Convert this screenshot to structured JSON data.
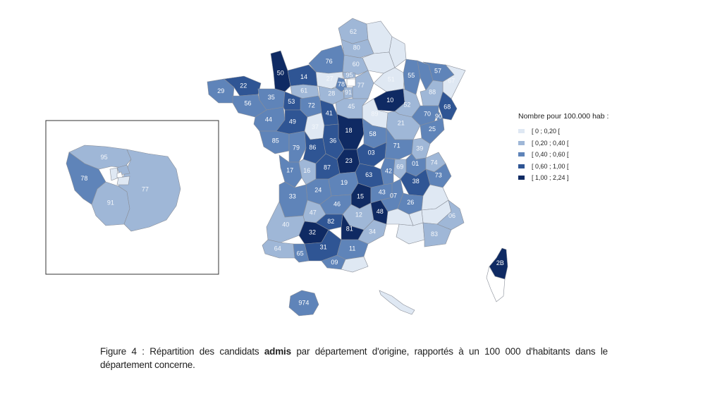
{
  "legend": {
    "title": "Nombre pour 100.000 hab :",
    "classes": [
      {
        "label": "[ 0 ; 0,20 [",
        "color": "#dfe8f3"
      },
      {
        "label": "[ 0,20 ; 0,40 [",
        "color": "#9fb7d7"
      },
      {
        "label": "[ 0,40 ; 0,60 [",
        "color": "#5f84b9"
      },
      {
        "label": "[ 0,60 ; 1,00 [",
        "color": "#2f5594"
      },
      {
        "label": "[ 1,00 ; 2,24 ]",
        "color": "#0f2a63"
      }
    ]
  },
  "caption": {
    "prefix": "Figure 4 : Répartition des candidats ",
    "emphasis": "admis",
    "suffix": " par département d'origine, rapportés à un 100 000 d'habitants dans le département concerne."
  },
  "departments": [
    {
      "code": "62",
      "class": 1
    },
    {
      "code": "80",
      "class": 1
    },
    {
      "code": "60",
      "class": 1
    },
    {
      "code": "76",
      "class": 2
    },
    {
      "code": "27",
      "class": 0
    },
    {
      "code": "50",
      "class": 4
    },
    {
      "code": "14",
      "class": 3
    },
    {
      "code": "61",
      "class": 1
    },
    {
      "code": "28",
      "class": 1
    },
    {
      "code": "95",
      "class": 1
    },
    {
      "code": "78",
      "class": 2
    },
    {
      "code": "91",
      "class": 1
    },
    {
      "code": "77",
      "class": 1
    },
    {
      "code": "51",
      "class": 0
    },
    {
      "code": "55",
      "class": 2
    },
    {
      "code": "57",
      "class": 2
    },
    {
      "code": "67",
      "class": 0
    },
    {
      "code": "10",
      "class": 4
    },
    {
      "code": "52",
      "class": 1
    },
    {
      "code": "88",
      "class": 1
    },
    {
      "code": "68",
      "class": 3
    },
    {
      "code": "90",
      "class": 2
    },
    {
      "code": "70",
      "class": 2
    },
    {
      "code": "25",
      "class": 2
    },
    {
      "code": "21",
      "class": 1
    },
    {
      "code": "89",
      "class": 0
    },
    {
      "code": "45",
      "class": 1
    },
    {
      "code": "41",
      "class": 3
    },
    {
      "code": "29",
      "class": 2
    },
    {
      "code": "22",
      "class": 3
    },
    {
      "code": "35",
      "class": 2
    },
    {
      "code": "56",
      "class": 2
    },
    {
      "code": "53",
      "class": 3
    },
    {
      "code": "72",
      "class": 2
    },
    {
      "code": "44",
      "class": 2
    },
    {
      "code": "49",
      "class": 3
    },
    {
      "code": "37",
      "class": 0
    },
    {
      "code": "18",
      "class": 4
    },
    {
      "code": "58",
      "class": 2
    },
    {
      "code": "71",
      "class": 2
    },
    {
      "code": "39",
      "class": 1
    },
    {
      "code": "85",
      "class": 2
    },
    {
      "code": "79",
      "class": 2
    },
    {
      "code": "86",
      "class": 3
    },
    {
      "code": "36",
      "class": 3
    },
    {
      "code": "03",
      "class": 3
    },
    {
      "code": "01",
      "class": 2
    },
    {
      "code": "74",
      "class": 1
    },
    {
      "code": "69",
      "class": 1
    },
    {
      "code": "42",
      "class": 2
    },
    {
      "code": "73",
      "class": 2
    },
    {
      "code": "17",
      "class": 2
    },
    {
      "code": "16",
      "class": 1
    },
    {
      "code": "87",
      "class": 3
    },
    {
      "code": "23",
      "class": 4
    },
    {
      "code": "63",
      "class": 3
    },
    {
      "code": "38",
      "class": 3
    },
    {
      "code": "24",
      "class": 2
    },
    {
      "code": "19",
      "class": 2
    },
    {
      "code": "15",
      "class": 4
    },
    {
      "code": "43",
      "class": 2
    },
    {
      "code": "07",
      "class": 2
    },
    {
      "code": "26",
      "class": 2
    },
    {
      "code": "33",
      "class": 2
    },
    {
      "code": "47",
      "class": 1
    },
    {
      "code": "46",
      "class": 2
    },
    {
      "code": "12",
      "class": 1
    },
    {
      "code": "48",
      "class": 4
    },
    {
      "code": "40",
      "class": 1
    },
    {
      "code": "82",
      "class": 3
    },
    {
      "code": "81",
      "class": 4
    },
    {
      "code": "32",
      "class": 4
    },
    {
      "code": "34",
      "class": 1
    },
    {
      "code": "64",
      "class": 1
    },
    {
      "code": "65",
      "class": 2
    },
    {
      "code": "31",
      "class": 3
    },
    {
      "code": "11",
      "class": 2
    },
    {
      "code": "09",
      "class": 2
    },
    {
      "code": "06",
      "class": 1
    },
    {
      "code": "83",
      "class": 1
    },
    {
      "code": "2B",
      "class": 4
    },
    {
      "code": "974",
      "class": 2
    }
  ]
}
